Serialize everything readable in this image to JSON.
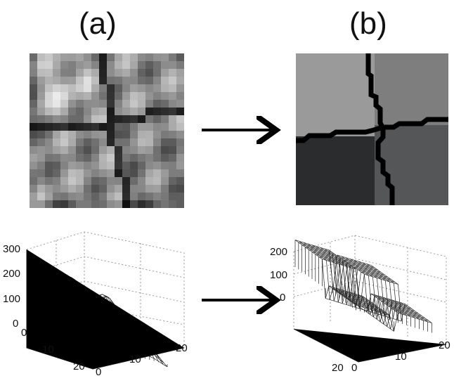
{
  "panels": {
    "a": {
      "label": "(a)"
    },
    "b": {
      "label": "(b)"
    }
  },
  "arrows": [
    "right-arrow-top",
    "right-arrow-bottom"
  ],
  "colors": {
    "boundary": "#000000",
    "region_top_left": "#9a9a9a",
    "region_top_right": "#7e7e7e",
    "region_bottom_left": "#2b2c2e",
    "region_bottom_right": "#555657",
    "mesh_line": "#1a1a1a",
    "grid_line": "#9a9a9a"
  },
  "plot_a": {
    "z_ticks": [
      "300",
      "200",
      "100",
      "0"
    ],
    "x_ticks": [
      "0",
      "10",
      "20"
    ],
    "y_ticks": [
      "0",
      "10",
      "20"
    ]
  },
  "plot_b": {
    "z_ticks": [
      "200",
      "100",
      "0"
    ],
    "x_ticks": [
      "0",
      "10",
      "20"
    ],
    "y_ticks": [
      "20"
    ]
  }
}
